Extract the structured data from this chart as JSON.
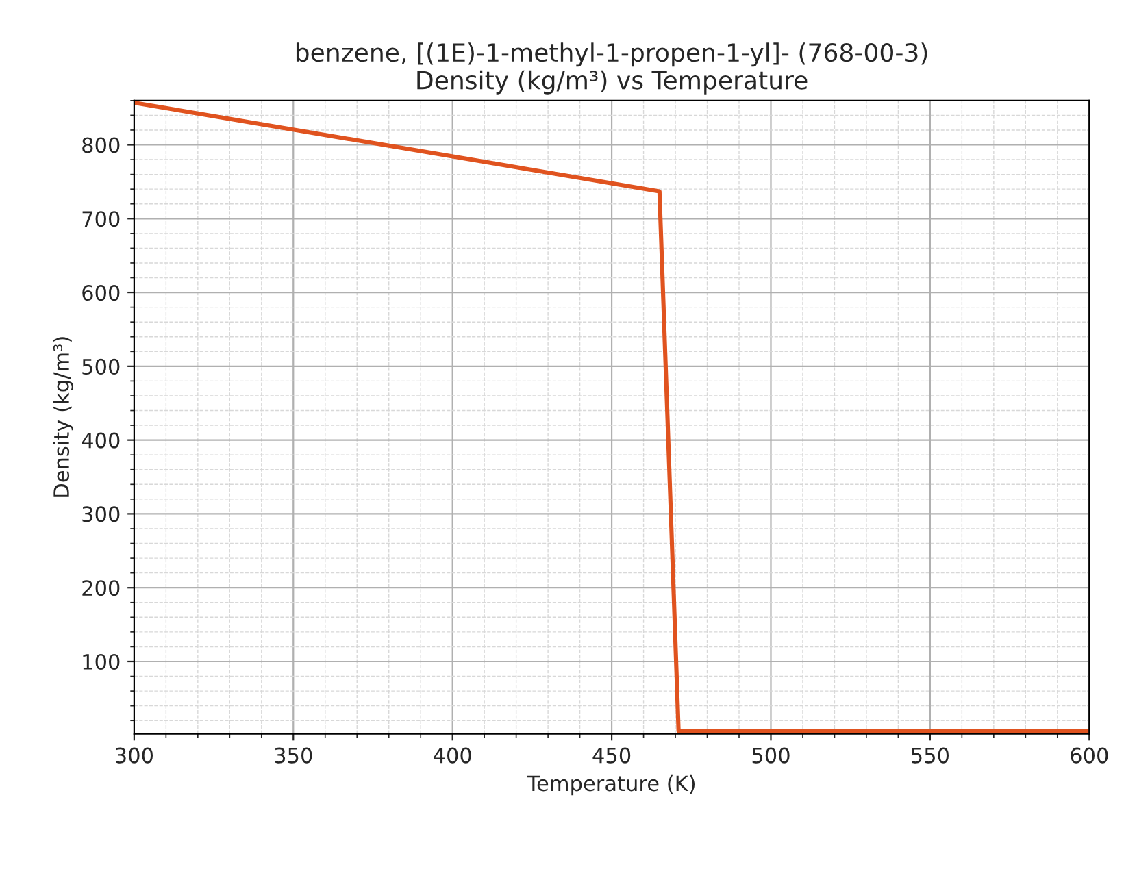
{
  "chart_data": {
    "type": "line",
    "title": "benzene, [(1E)-1-methyl-1-propen-1-yl]- (768-00-3)\nDensity (kg/m³) vs Temperature",
    "xlabel": "Temperature (K)",
    "ylabel": "Density (kg/m³)",
    "x": [
      300,
      465,
      471,
      600
    ],
    "series": [
      {
        "color": "#e0531f",
        "values": [
          857,
          737,
          6,
          6
        ]
      }
    ],
    "xlim": [
      300,
      600
    ],
    "ylim": [
      2,
      860
    ],
    "xticks": [
      300,
      350,
      400,
      450,
      500,
      550,
      600
    ],
    "yticks": [
      100,
      200,
      300,
      400,
      500,
      600,
      700,
      800
    ],
    "grid": true,
    "marker": "none",
    "line_style": "solid"
  }
}
